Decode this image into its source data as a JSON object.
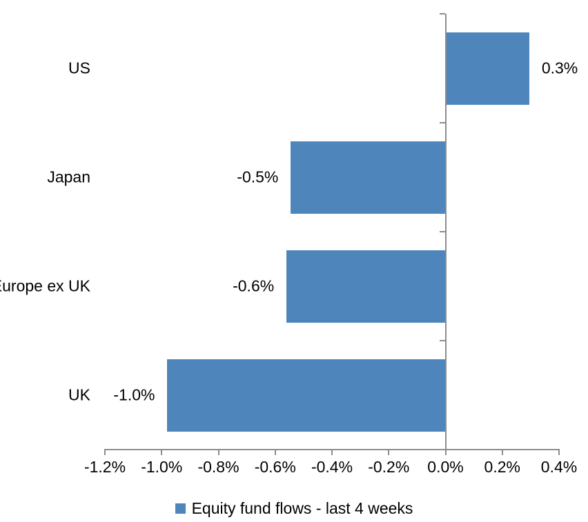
{
  "window": {
    "background": "#FFFFFF"
  },
  "chart_data": {
    "type": "bar",
    "orientation": "horizontal",
    "title": "",
    "xlabel": "",
    "ylabel": "",
    "categories": [
      "US",
      "Japan",
      "Europe ex UK",
      "UK"
    ],
    "series": [
      {
        "name": "Equity fund flows - last 4 weeks",
        "values": [
          0.3,
          -0.5,
          -0.6,
          -1.0
        ],
        "values_precise": [
          0.295,
          -0.545,
          -0.56,
          -0.98
        ],
        "value_labels": [
          "0.3%",
          "-0.5%",
          "-0.6%",
          "-1.0%"
        ]
      }
    ],
    "x_axis": {
      "min": -1.2,
      "max": 0.4,
      "step": 0.2,
      "tick_labels": [
        "-1.2%",
        "-1.0%",
        "-0.8%",
        "-0.6%",
        "-0.4%",
        "-0.2%",
        "0.0%",
        "0.2%",
        "0.4%"
      ]
    },
    "grid": false,
    "legend": {
      "position": "bottom",
      "label": "Equity fund flows - last 4 weeks"
    },
    "colors": {
      "bar": "#4E86BC",
      "axis": "#8C8C8C",
      "text": "#000000",
      "background": "#FFFFFF"
    }
  }
}
